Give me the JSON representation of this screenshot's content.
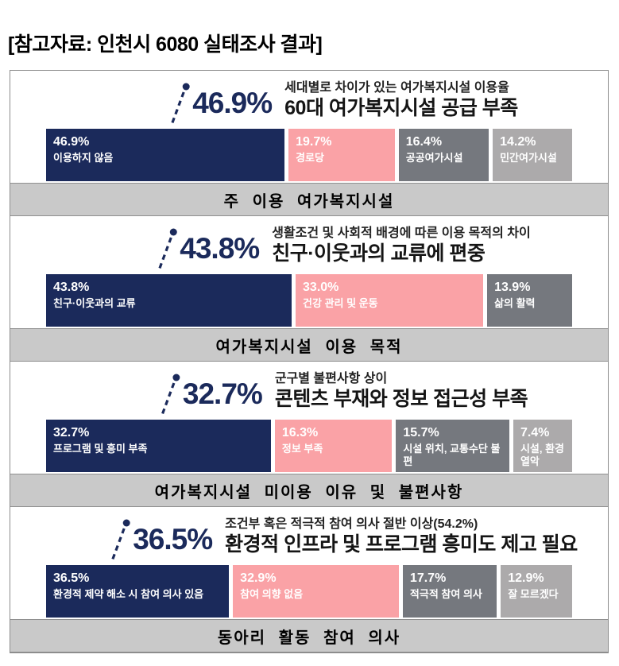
{
  "page_title": "[참고자료: 인천시 6080 실태조사 결과]",
  "colors": {
    "navy": "#1B2A5B",
    "pink": "#FAA2A6",
    "gray_dark": "#75787E",
    "gray_light": "#ACAAAB",
    "footer_bg": "#C9C9C9",
    "footer_border": "#8F8F8F",
    "board_border": "#8C8C8C",
    "headline_text": "#151515",
    "bar_text": "#FFFFFF"
  },
  "sections": [
    {
      "highlight_pct": "46.9%",
      "subtitle": "세대별로 차이가 있는 여가복지시설 이용율",
      "headline": "60대 여가복지시설 공급 부족",
      "footer": "주 이용 여가복지시설",
      "bars": [
        {
          "pct": "46.9%",
          "label": "이용하지 않음",
          "value": 46.9,
          "color": "navy"
        },
        {
          "pct": "19.7%",
          "label": "경로당",
          "value": 19.7,
          "color": "pink"
        },
        {
          "pct": "16.4%",
          "label": "공공여가시설",
          "value": 16.4,
          "color": "gray_dark"
        },
        {
          "pct": "14.2%",
          "label": "민간여가시설",
          "value": 14.2,
          "color": "gray_light"
        }
      ]
    },
    {
      "highlight_pct": "43.8%",
      "subtitle": "생활조건 및 사회적 배경에 따른 이용 목적의 차이",
      "headline": "친구·이웃과의 교류에 편중",
      "footer": "여가복지시설 이용 목적",
      "bars": [
        {
          "pct": "43.8%",
          "label": "친구·이웃과의 교류",
          "value": 43.8,
          "color": "navy"
        },
        {
          "pct": "33.0%",
          "label": "건강 관리 및 운동",
          "value": 33.0,
          "color": "pink"
        },
        {
          "pct": "13.9%",
          "label": "삶의 활력",
          "value": 13.9,
          "color": "gray_dark"
        }
      ]
    },
    {
      "highlight_pct": "32.7%",
      "subtitle": "군구별 불편사항 상이",
      "headline": "콘텐츠 부재와 정보 접근성 부족",
      "footer": "여가복지시설 미이용 이유 및 불편사항",
      "bars": [
        {
          "pct": "32.7%",
          "label": "프로그램 및 흥미 부족",
          "value": 32.7,
          "color": "navy"
        },
        {
          "pct": "16.3%",
          "label": "정보 부족",
          "value": 16.3,
          "color": "pink"
        },
        {
          "pct": "15.7%",
          "label": "시설 위치, 교통수단 불편",
          "value": 15.7,
          "color": "gray_dark"
        },
        {
          "pct": "7.4%",
          "label": "시설, 환경 열악",
          "value": 7.4,
          "color": "gray_light"
        }
      ]
    },
    {
      "highlight_pct": "36.5%",
      "subtitle": "조건부 혹은 적극적 참여 의사 절반 이상(54.2%)",
      "headline": "환경적 인프라 및 프로그램 흥미도 제고 필요",
      "footer": "동아리 활동 참여 의사",
      "bars": [
        {
          "pct": "36.5%",
          "label": "환경적 제약 해소 시 참여 의사 있음",
          "value": 36.5,
          "color": "navy"
        },
        {
          "pct": "32.9%",
          "label": "참여 의향 없음",
          "value": 32.9,
          "color": "pink"
        },
        {
          "pct": "17.7%",
          "label": "적극적 참여 의사",
          "value": 17.7,
          "color": "gray_dark"
        },
        {
          "pct": "12.9%",
          "label": "잘 모르겠다",
          "value": 12.9,
          "color": "gray_light"
        }
      ]
    }
  ],
  "chart_data": [
    {
      "type": "bar",
      "orientation": "horizontal-stacked",
      "title": "주 이용 여가복지시설",
      "subtitle": "세대별로 차이가 있는 여가복지시설 이용율",
      "headline": "60대 여가복지시설 공급 부족",
      "highlight_value": 46.9,
      "categories": [
        "이용하지 않음",
        "경로당",
        "공공여가시설",
        "민간여가시설"
      ],
      "values": [
        46.9,
        19.7,
        16.4,
        14.2
      ],
      "unit": "%",
      "colors": [
        "#1B2A5B",
        "#FAA2A6",
        "#75787E",
        "#ACAAAB"
      ],
      "legend_position": "none",
      "grid": false
    },
    {
      "type": "bar",
      "orientation": "horizontal-stacked",
      "title": "여가복지시설 이용 목적",
      "subtitle": "생활조건 및 사회적 배경에 따른 이용 목적의 차이",
      "headline": "친구·이웃과의 교류에 편중",
      "highlight_value": 43.8,
      "categories": [
        "친구·이웃과의 교류",
        "건강 관리 및 운동",
        "삶의 활력"
      ],
      "values": [
        43.8,
        33.0,
        13.9
      ],
      "unit": "%",
      "colors": [
        "#1B2A5B",
        "#FAA2A6",
        "#75787E"
      ],
      "legend_position": "none",
      "grid": false
    },
    {
      "type": "bar",
      "orientation": "horizontal-stacked",
      "title": "여가복지시설 미이용 이유 및 불편사항",
      "subtitle": "군구별 불편사항 상이",
      "headline": "콘텐츠 부재와 정보 접근성 부족",
      "highlight_value": 32.7,
      "categories": [
        "프로그램 및 흥미 부족",
        "정보 부족",
        "시설 위치, 교통수단 불편",
        "시설, 환경 열악"
      ],
      "values": [
        32.7,
        16.3,
        15.7,
        7.4
      ],
      "unit": "%",
      "colors": [
        "#1B2A5B",
        "#FAA2A6",
        "#75787E",
        "#ACAAAB"
      ],
      "legend_position": "none",
      "grid": false
    },
    {
      "type": "bar",
      "orientation": "horizontal-stacked",
      "title": "동아리 활동 참여 의사",
      "subtitle": "조건부 혹은 적극적 참여 의사 절반 이상(54.2%)",
      "headline": "환경적 인프라 및 프로그램 흥미도 제고 필요",
      "highlight_value": 36.5,
      "categories": [
        "환경적 제약 해소 시 참여 의사 있음",
        "참여 의향 없음",
        "적극적 참여 의사",
        "잘 모르겠다"
      ],
      "values": [
        36.5,
        32.9,
        17.7,
        12.9
      ],
      "unit": "%",
      "colors": [
        "#1B2A5B",
        "#FAA2A6",
        "#75787E",
        "#ACAAAB"
      ],
      "legend_position": "none",
      "grid": false
    }
  ]
}
